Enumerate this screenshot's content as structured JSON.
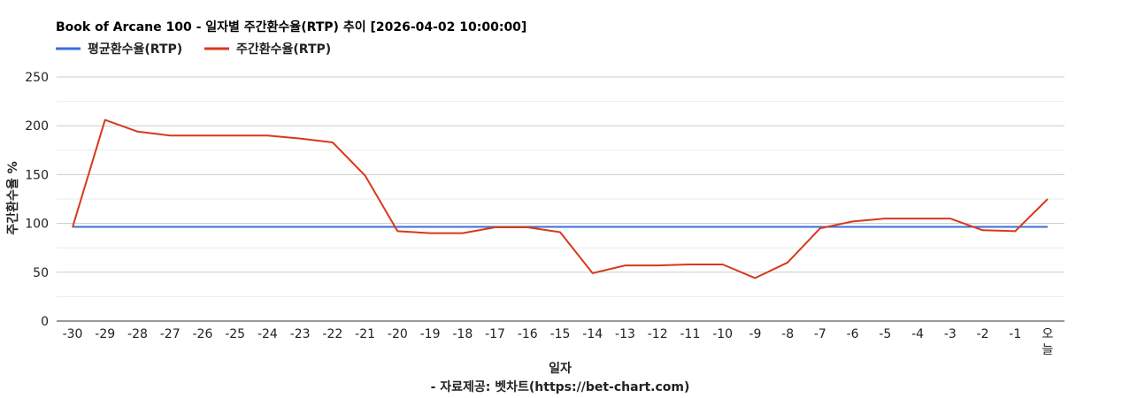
{
  "chart_data": {
    "type": "line",
    "title": "Book of Arcane 100 - 일자별 주간환수율(RTP) 추이 [2026-04-02 10:00:00]",
    "xlabel": "일자",
    "ylabel": "주간환수율 %",
    "source": "- 자료제공: 벳차트(https://bet-chart.com)",
    "categories": [
      "-30",
      "-29",
      "-28",
      "-27",
      "-26",
      "-25",
      "-24",
      "-23",
      "-22",
      "-21",
      "-20",
      "-19",
      "-18",
      "-17",
      "-16",
      "-15",
      "-14",
      "-13",
      "-12",
      "-11",
      "-10",
      "-9",
      "-8",
      "-7",
      "-6",
      "-5",
      "-4",
      "-3",
      "-2",
      "-1",
      "오늘"
    ],
    "ylim": [
      0,
      250
    ],
    "yticks": [
      0,
      50,
      100,
      150,
      200,
      250
    ],
    "grid": true,
    "legend_position": "top-left",
    "series": [
      {
        "name": "평균환수율(RTP)",
        "color": "#3a6fd8",
        "values": [
          96.5,
          96.5,
          96.5,
          96.5,
          96.5,
          96.5,
          96.5,
          96.5,
          96.5,
          96.5,
          96.5,
          96.5,
          96.5,
          96.5,
          96.5,
          96.5,
          96.5,
          96.5,
          96.5,
          96.5,
          96.5,
          96.5,
          96.5,
          96.5,
          96.5,
          96.5,
          96.5,
          96.5,
          96.5,
          96.5,
          96.5
        ]
      },
      {
        "name": "주간환수율(RTP)",
        "color": "#d8391a",
        "values": [
          96,
          206,
          194,
          190,
          190,
          190,
          190,
          187,
          183,
          149,
          92,
          90,
          90,
          96,
          96,
          91,
          49,
          57,
          57,
          58,
          58,
          44,
          60,
          95,
          102,
          105,
          105,
          105,
          93,
          92,
          125
        ]
      }
    ]
  }
}
